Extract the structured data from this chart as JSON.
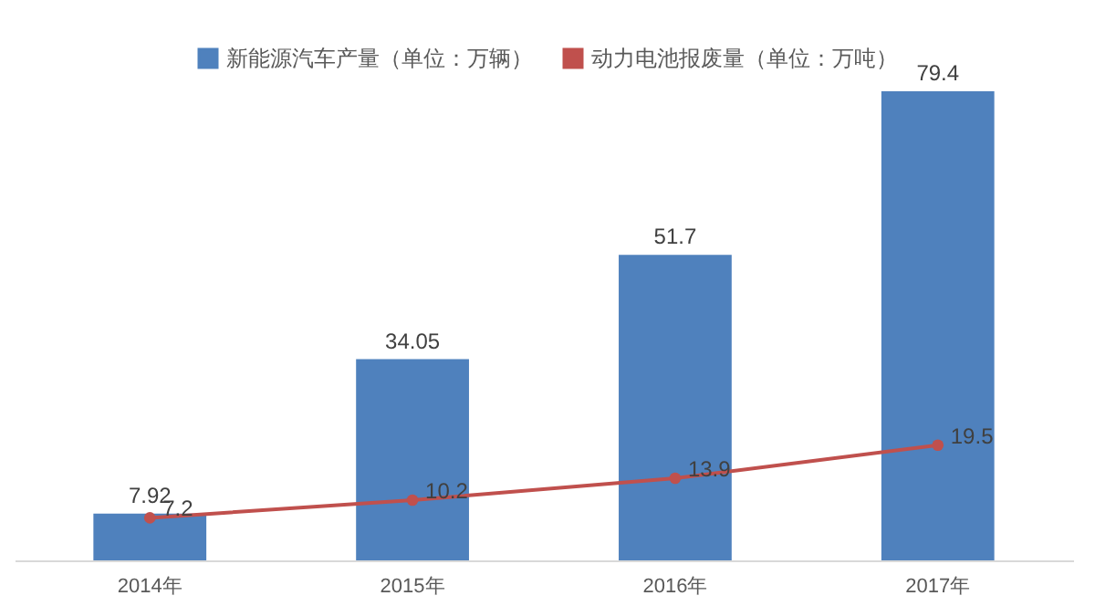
{
  "chart_data": {
    "type": "bar",
    "categories": [
      "2014年",
      "2015年",
      "2016年",
      "2017年"
    ],
    "series": [
      {
        "name": "新能源汽车产量（单位：万辆）",
        "color": "#4f81bd",
        "values": [
          7.92,
          34.05,
          51.7,
          79.4
        ]
      },
      {
        "name": "动力电池报废量（单位：万吨）",
        "type": "line",
        "color": "#c0504d",
        "values": [
          7.2,
          10.2,
          13.9,
          19.5
        ]
      }
    ],
    "data_labels": true,
    "legend": "top",
    "grid": false,
    "marker": "circle",
    "line_style": "solid"
  }
}
